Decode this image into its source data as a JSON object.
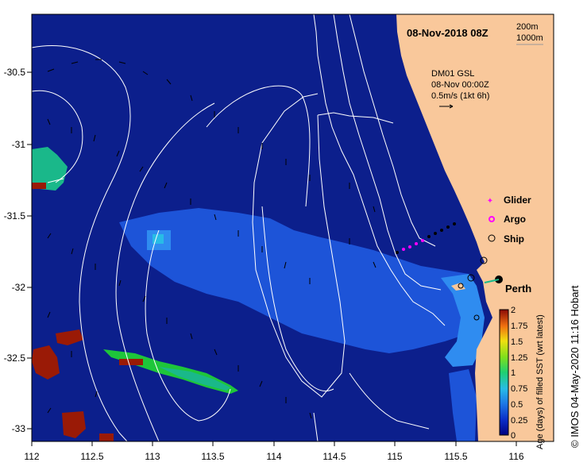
{
  "map": {
    "title": "08-Nov-2018 08Z",
    "bathymetry_labels": [
      "200m",
      "1000m"
    ],
    "current_info": [
      "DM01 GSL",
      "08-Nov 00:00Z",
      "0.5m/s (1kt 6h)"
    ],
    "city": "Perth",
    "credit": "© IMOS 04-May-2020 11:16 Hobart",
    "x_ticks": [
      "112",
      "112.5",
      "113",
      "113.5",
      "114",
      "114.5",
      "115",
      "115.5",
      "116"
    ],
    "y_ticks": [
      "-30.5",
      "-31",
      "-31.5",
      "-32",
      "-32.5",
      "-33"
    ],
    "legend": [
      {
        "label": "Glider",
        "color": "#ff00ff"
      },
      {
        "label": "Argo",
        "color": "#ff00ff"
      },
      {
        "label": "Ship",
        "color": "#000000"
      }
    ],
    "colorbar": {
      "title": "Age (days) of filled SST (wrt latest)",
      "ticks": [
        "0",
        "0.25",
        "0.5",
        "0.75",
        "1",
        "1.25",
        "1.5",
        "1.75",
        "2"
      ]
    },
    "colors": {
      "ocean": "#0c1f8c",
      "land": "#f9c89b",
      "newer": "#1d54d8",
      "coastal": "#2f8cf0",
      "green": "#1ec63a",
      "teal": "#1ab88a",
      "red": "#9a1a06"
    }
  }
}
